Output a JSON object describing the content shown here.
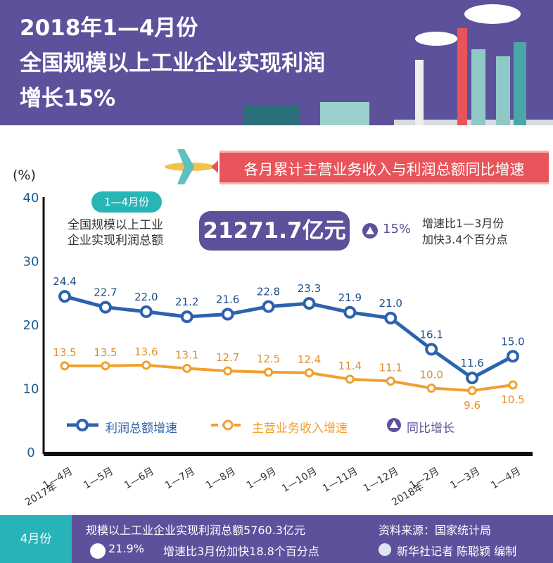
{
  "header": {
    "title_lines": [
      "2018年1—4月份",
      "全国规模以上工业企业实现利润",
      "增长15%"
    ]
  },
  "ribbon": "各月累计主营业务收入与利润总额同比增速",
  "summary": {
    "period": "1—4月份",
    "desc_lines": [
      "全国规模以上工业",
      "企业实现利润总额"
    ],
    "amount": "21271.7亿元",
    "growth": "15%",
    "note_lines": [
      "增速比1—3月份",
      "加快3.4个百分点"
    ]
  },
  "footer": {
    "month": "4月份",
    "line1": "规模以上工业企业实现利润总额5760.3亿元",
    "growth": "21.9%",
    "line2": "增速比3月份加快18.8个百分点",
    "source": "资料来源：国家统计局",
    "credit": "新华社记者 陈聪颖 编制"
  },
  "colors": {
    "profit": "#2d63ad",
    "revenue": "#f0a030",
    "purple": "#5e519c"
  },
  "chart_data": {
    "type": "line",
    "ylabel": "(%)",
    "ylim": [
      0,
      40
    ],
    "yticks": [
      0,
      10,
      20,
      30,
      40
    ],
    "categories": [
      "1—4月",
      "1—5月",
      "1—6月",
      "1—7月",
      "1—8月",
      "1—9月",
      "1—10月",
      "1—11月",
      "1—12月",
      "1—2月",
      "1—3月",
      "1—4月"
    ],
    "year_labels": {
      "0": "2017年",
      "9": "2018年"
    },
    "series": [
      {
        "name": "利润总额增速",
        "values": [
          24.4,
          22.7,
          22.0,
          21.2,
          21.6,
          22.8,
          23.3,
          21.9,
          21.0,
          16.1,
          11.6,
          15.0
        ]
      },
      {
        "name": "主营业务收入增速",
        "values": [
          13.5,
          13.5,
          13.6,
          13.1,
          12.7,
          12.5,
          12.4,
          11.4,
          11.1,
          10.0,
          9.6,
          10.5
        ]
      }
    ],
    "legend_extra": "同比增长"
  }
}
